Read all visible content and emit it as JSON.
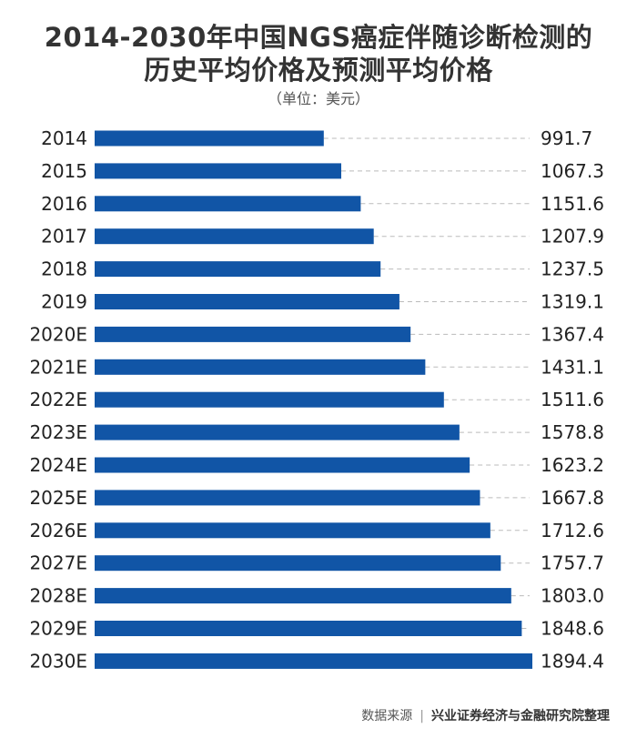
{
  "title_line1": "2014-2030年中国NGS癌症伴随诊断检测的",
  "title_line2": "历史平均价格及预测平均价格",
  "unit": "（单位：美元）",
  "footer": {
    "source_label": "数据来源",
    "separator": "|",
    "source": "兴业证券经济与金融研究院整理"
  },
  "colors": {
    "bar": "#1155a6",
    "gridline": "#bbbbbb",
    "text": "#222222"
  },
  "chart_data": {
    "type": "bar",
    "orientation": "horizontal",
    "categories": [
      "2014",
      "2015",
      "2016",
      "2017",
      "2018",
      "2019",
      "2020E",
      "2021E",
      "2022E",
      "2023E",
      "2024E",
      "2025E",
      "2026E",
      "2027E",
      "2028E",
      "2029E",
      "2030E"
    ],
    "values": [
      991.7,
      1067.3,
      1151.6,
      1207.9,
      1237.5,
      1319.1,
      1367.4,
      1431.1,
      1511.6,
      1578.8,
      1623.2,
      1667.8,
      1712.6,
      1757.7,
      1803.0,
      1848.6,
      1894.4
    ],
    "value_labels": [
      "991.7",
      "1067.3",
      "1151.6",
      "1207.9",
      "1237.5",
      "1319.1",
      "1367.4",
      "1431.1",
      "1511.6",
      "1578.8",
      "1623.2",
      "1667.8",
      "1712.6",
      "1757.7",
      "1803.0",
      "1848.6",
      "1894.4"
    ],
    "xlim": [
      0,
      1894.4
    ],
    "grid": false,
    "legend": "none"
  }
}
